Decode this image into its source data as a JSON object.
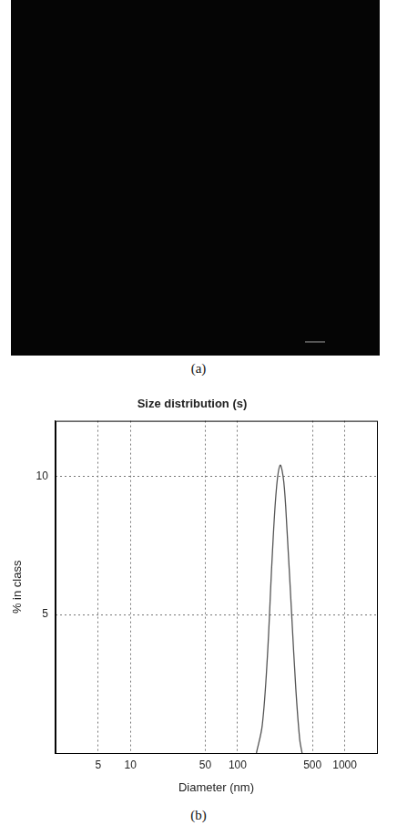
{
  "panel_labels": [
    "(a)",
    "(b)"
  ],
  "chart_data": {
    "type": "line",
    "title": "Size distribution (s)",
    "x_label": "Diameter (nm)",
    "y_label": "% in class",
    "x": [
      150,
      170,
      190,
      210,
      230,
      250,
      270,
      290,
      320,
      350,
      380,
      400
    ],
    "values": [
      0,
      1,
      3.5,
      7,
      9.5,
      10.4,
      9.8,
      8,
      5,
      2.3,
      0.5,
      0
    ],
    "color": "#555555",
    "log": "x",
    "xlim": [
      2,
      2000
    ],
    "xticks": [
      5,
      10,
      50,
      100,
      500,
      1000
    ],
    "ylim": [
      0,
      12
    ],
    "yticks": [
      5,
      10
    ],
    "grid": true
  }
}
